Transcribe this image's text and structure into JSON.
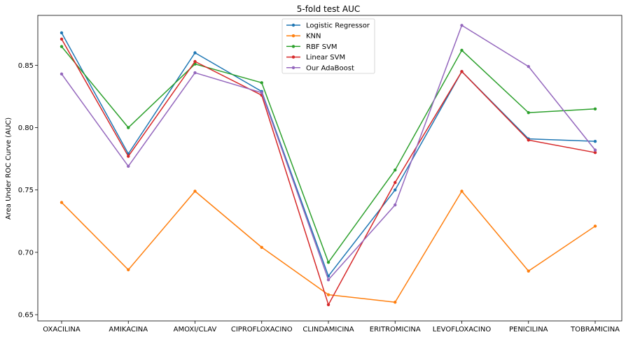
{
  "chart_data": {
    "type": "line",
    "title": "5-fold test AUC",
    "xlabel": "",
    "ylabel": "Area Under ROC Curve (AUC)",
    "ylim": [
      0.645,
      0.89
    ],
    "yticks": [
      "0.65",
      "0.70",
      "0.75",
      "0.80",
      "0.85"
    ],
    "ytick_values": [
      0.65,
      0.7,
      0.75,
      0.8,
      0.85
    ],
    "grid": false,
    "legend_position": "top-center",
    "categories": [
      "OXACILINA",
      "AMIKACINA",
      "AMOXI/CLAV",
      "CIPROFLOXACINO",
      "CLINDAMICINA",
      "ERITROMICINA",
      "LEVOFLOXACINO",
      "PENICILINA",
      "TOBRAMICINA"
    ],
    "series": [
      {
        "name": "Logistic Regressor",
        "color": "#1f77b4",
        "values": [
          0.876,
          0.779,
          0.86,
          0.829,
          0.681,
          0.75,
          0.845,
          0.791,
          0.789
        ]
      },
      {
        "name": "KNN",
        "color": "#ff7f0e",
        "values": [
          0.74,
          0.686,
          0.749,
          0.704,
          0.666,
          0.66,
          0.749,
          0.685,
          0.721
        ]
      },
      {
        "name": "RBF SVM",
        "color": "#2ca02c",
        "values": [
          0.865,
          0.8,
          0.851,
          0.836,
          0.692,
          0.766,
          0.862,
          0.812,
          0.815
        ]
      },
      {
        "name": "Linear SVM",
        "color": "#d62728",
        "values": [
          0.871,
          0.777,
          0.853,
          0.826,
          0.658,
          0.756,
          0.845,
          0.79,
          0.78
        ]
      },
      {
        "name": "Our AdaBoost",
        "color": "#9467bd",
        "values": [
          0.843,
          0.769,
          0.844,
          0.828,
          0.678,
          0.738,
          0.882,
          0.849,
          0.782
        ]
      }
    ]
  }
}
